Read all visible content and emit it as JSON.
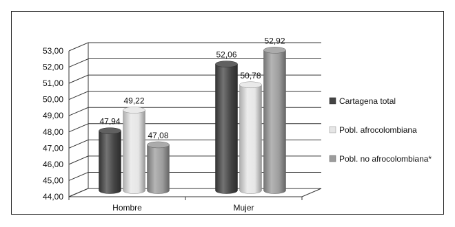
{
  "chart_data": {
    "type": "bar",
    "style": "3d-cylinder",
    "categories": [
      "Hombre",
      "Mujer"
    ],
    "series": [
      {
        "name": "Cartagena total",
        "values": [
          47.94,
          52.06
        ],
        "color": "#444444"
      },
      {
        "name": "Pobl. afrocolombiana",
        "values": [
          49.22,
          50.78
        ],
        "color": "#e6e6e6"
      },
      {
        "name": "Pobl. no afrocolombiana*",
        "values": [
          47.08,
          52.92
        ],
        "color": "#9c9c9c"
      }
    ],
    "value_labels": [
      [
        "47,94",
        "52,06"
      ],
      [
        "49,22",
        "50,78"
      ],
      [
        "47,08",
        "52,92"
      ]
    ],
    "yticks": [
      "44,00",
      "45,00",
      "46,00",
      "47,00",
      "48,00",
      "49,00",
      "50,00",
      "51,00",
      "52,00",
      "53,00"
    ],
    "ylim": [
      44,
      53
    ],
    "grid": true,
    "legend_position": "right",
    "title": "",
    "xlabel": "",
    "ylabel": ""
  }
}
